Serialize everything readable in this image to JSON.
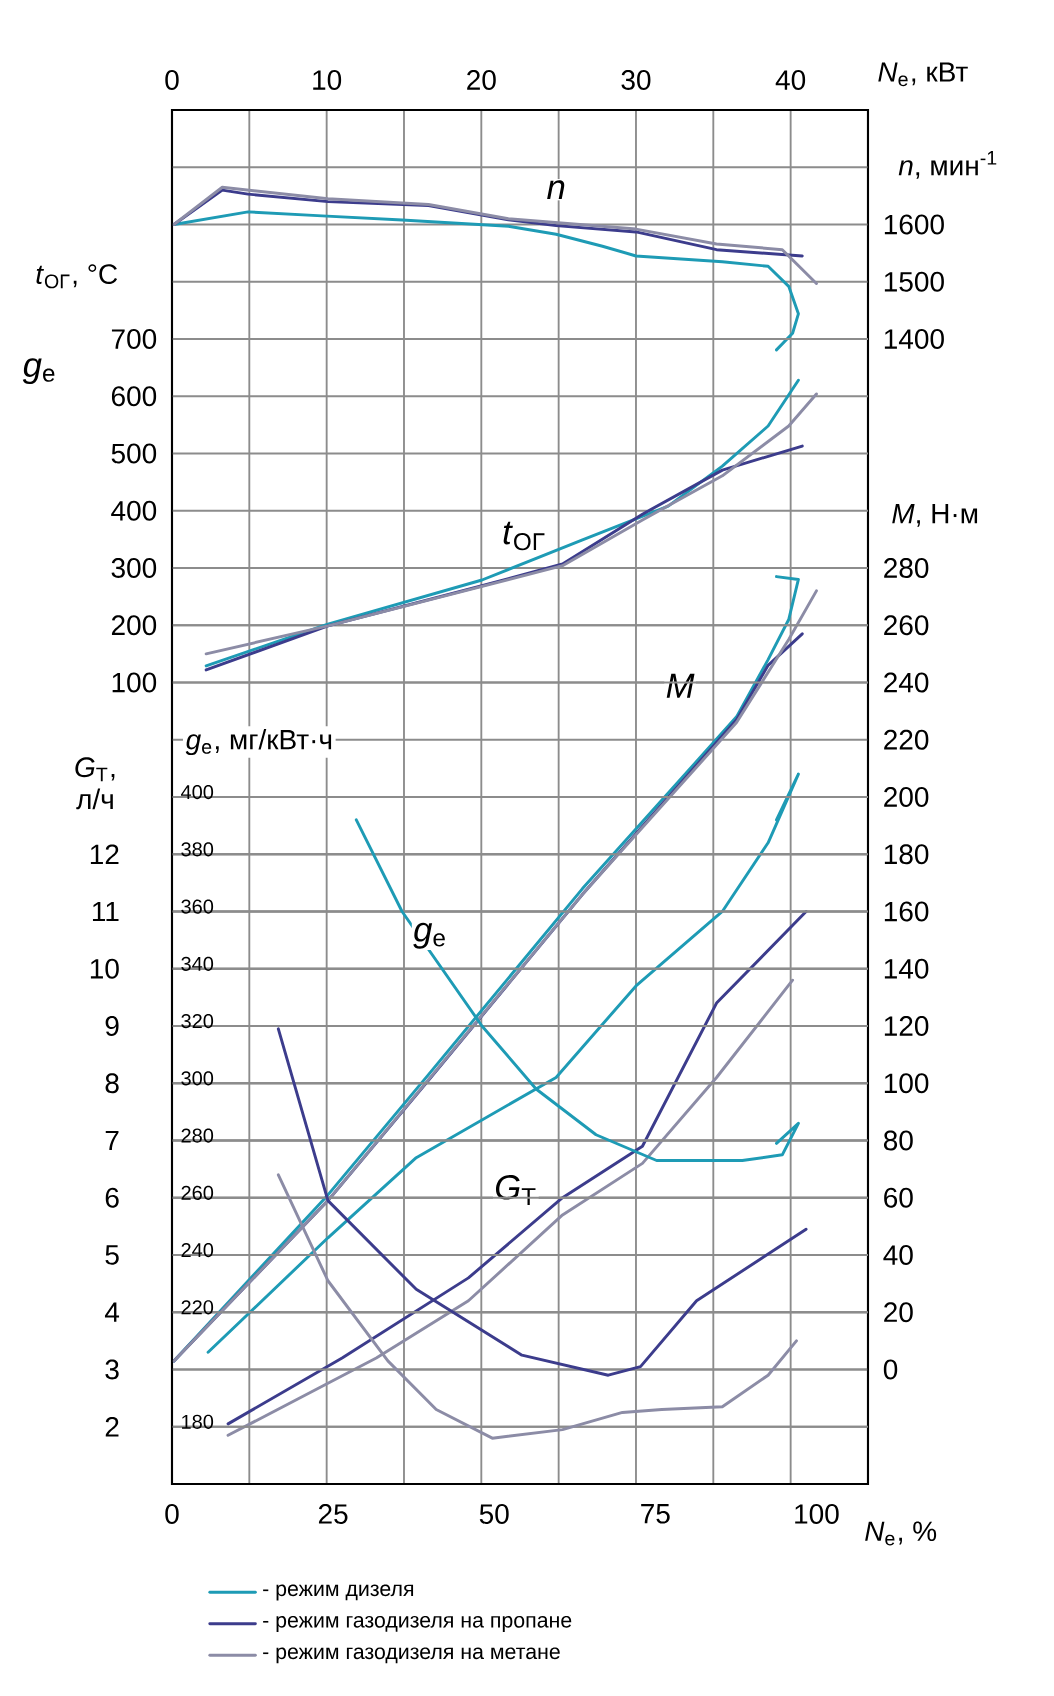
{
  "chart_data": [
    {
      "type": "line",
      "xlabel": "*N*$_{e}$, %",
      "x2label": "*N*$_{e}$, кВт",
      "ylabel": "*G*$_{Т}$, л/ч",
      "y2label": "*M*, Н·м",
      "y3label": "*n*, мин$^{-1}$",
      "xlim": [
        0,
        108
      ],
      "xticks": [
        0,
        25,
        50,
        75,
        100
      ],
      "x2lim": [
        0,
        45
      ],
      "x2ticks": [
        0,
        {
          "value": 5,
          "label": null
        },
        10,
        {
          "value": 15,
          "label": null
        },
        20,
        {
          "value": 25,
          "label": null
        },
        30,
        {
          "value": 35,
          "label": null
        },
        40,
        {
          "value": 45,
          "label": null
        }
      ],
      "ylim": [
        1,
        25
      ],
      "yticks": [
        2,
        3,
        4,
        5,
        6,
        7,
        8,
        9,
        10,
        11,
        12
      ],
      "y2lim": [
        -40,
        440
      ],
      "y2ticks": [
        0,
        20,
        40,
        60,
        80,
        100,
        120,
        140,
        160,
        180,
        200,
        220,
        240,
        260,
        280
      ],
      "y3lim": [
        -600,
        1800
      ],
      "y3ticks": [
        1400,
        1500,
        1600,
        {
          "value": 1700,
          "label": null
        }
      ],
      "grid": true,
      "legend": "bottom",
      "annotations": [
        "*n*",
        "*M*",
        "*G*$_{Т}$"
      ],
      "series": [
        {
          "axis": "y3",
          "color": "#1e9bb5",
          "x": [
            0.3,
            11.8,
            23.3,
            35.7,
            52.2,
            59.6,
            66.8,
            72,
            85.4,
            92.5,
            95.7,
            97.2,
            96.3,
            93.8
          ],
          "values": [
            1600,
            1622,
            1615,
            1608,
            1597,
            1583,
            1562,
            1545,
            1535,
            1527,
            1492,
            1444,
            1410,
            1381
          ]
        },
        {
          "axis": "y3",
          "color": "#3c3c8c",
          "x": [
            0.3,
            7.8,
            11.8,
            24.2,
            39.8,
            52.2,
            59.6,
            72,
            84.5,
            97.8
          ],
          "values": [
            1600,
            1660,
            1653,
            1640,
            1633,
            1608,
            1598,
            1587,
            1556,
            1545
          ]
        },
        {
          "axis": "y3",
          "color": "#8c8ca6",
          "x": [
            0.3,
            7.8,
            24.2,
            39.8,
            52.2,
            72,
            84.5,
            94.7,
            100
          ],
          "values": [
            1600,
            1665,
            1645,
            1635,
            1610,
            1592,
            1566,
            1556,
            1497
          ]
        },
        {
          "axis": "y2",
          "name": "- режим дизеля",
          "color": "#1e9bb5",
          "x": [
            0.3,
            24.2,
            39.8,
            63.7,
            87.6,
            92.5,
            95.7,
            97.2,
            93.8
          ],
          "values": [
            3,
            61,
            103,
            168,
            228,
            248,
            262,
            276,
            277
          ]
        },
        {
          "axis": "y2",
          "name": "- режим газодизеля на пропане",
          "color": "#3c3c8c",
          "x": [
            0.3,
            24.2,
            39.8,
            63.7,
            87.6,
            92.5,
            97.8
          ],
          "values": [
            3,
            59,
            101,
            166,
            227,
            246,
            257
          ]
        },
        {
          "axis": "y2",
          "name": "- режим газодизеля на метане",
          "color": "#8c8ca6",
          "x": [
            0.3,
            24.2,
            63.7,
            87.6,
            95.7,
            100
          ],
          "values": [
            3,
            59,
            166,
            226,
            255,
            272
          ]
        },
        {
          "color": "#1e9bb5",
          "x": [
            5.6,
            24.2,
            37.9,
            59.6,
            72,
            85.4,
            92.5,
            97.2,
            93.8
          ],
          "values": [
            3.3,
            5.3,
            6.7,
            8.1,
            9.7,
            11,
            12.2,
            13.4,
            12.6
          ]
        },
        {
          "color": "#3c3c8c",
          "x": [
            8.7,
            26.4,
            46,
            60.6,
            73,
            84.5,
            98.4
          ],
          "values": [
            2.05,
            3.2,
            4.6,
            6,
            6.9,
            9.4,
            11
          ]
        },
        {
          "color": "#8c8ca6",
          "x": [
            8.7,
            31.7,
            46,
            60.6,
            73,
            84.5,
            96.3
          ],
          "values": [
            1.85,
            3.2,
            4.2,
            5.7,
            6.6,
            8.1,
            9.8
          ]
        }
      ]
    },
    {
      "type": "line",
      "tick_labels": "y",
      "ylabel": "*t*$_{ОГ}$, °C",
      "y2label": "*g*$_{e}$, мг/кВт·ч",
      "xlim": [
        0,
        108
      ],
      "ylim": [
        -1300,
        1100
      ],
      "yticks": [
        100,
        200,
        300,
        400,
        500,
        600,
        700
      ],
      "y2lim": [
        160,
        640
      ],
      "y2ticks": [
        180,
        220,
        240,
        260,
        280,
        300,
        320,
        340,
        360,
        380,
        400
      ],
      "grid": "y",
      "annotations": [
        "*t*$_{ОГ}$",
        "*g*$_{e}$",
        "*g*$_{e}$"
      ],
      "series": [
        {
          "color": "#1e9bb5",
          "x": [
            5.3,
            24.2,
            48.1,
            63.7,
            77,
            85.4,
            92.5,
            97.2
          ],
          "values": [
            129,
            202,
            279,
            349,
            408,
            478,
            548,
            628
          ]
        },
        {
          "color": "#3c3c8c",
          "x": [
            5.3,
            24.2,
            48.1,
            60.6,
            73,
            85.4,
            97.8
          ],
          "values": [
            122,
            199,
            269,
            307,
            394,
            471,
            513
          ]
        },
        {
          "color": "#8c8ca6",
          "x": [
            5.3,
            24.2,
            60.6,
            73,
            85.4,
            95.7,
            100
          ],
          "values": [
            150,
            199,
            304,
            384,
            461,
            548,
            604
          ]
        },
        {
          "axis": "y2",
          "color": "#1e9bb5",
          "x": [
            28.6,
            35.7,
            48.1,
            56.5,
            65.8,
            75.2,
            88.5,
            94.7,
            97.2,
            93.8
          ],
          "values": [
            392,
            360,
            320,
            298,
            282,
            273,
            273,
            275,
            286,
            279
          ]
        },
        {
          "axis": "y2",
          "color": "#3c3c8c",
          "x": [
            16.5,
            24.2,
            37.9,
            54.3,
            67.7,
            72.7,
            81.4,
            98.4
          ],
          "values": [
            319,
            259,
            228,
            205,
            198,
            201,
            224,
            249
          ]
        },
        {
          "axis": "y2",
          "color": "#8c8ca6",
          "x": [
            16.5,
            24.2,
            33.5,
            41,
            49.7,
            60.6,
            69.9,
            76,
            85.4,
            92.5,
            96.9
          ],
          "values": [
            268,
            231,
            203,
            186,
            176,
            179,
            185,
            186,
            187,
            198,
            210
          ]
        }
      ]
    }
  ]
}
